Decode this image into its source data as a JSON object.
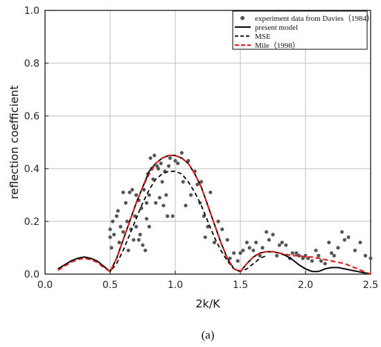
{
  "chart_data": {
    "type": "scatter",
    "xlabel": "2k/K",
    "ylabel": "reflection coefficient",
    "xlim": [
      0,
      2.5
    ],
    "ylim": [
      0,
      1.0
    ],
    "x_ticks": [
      "0.0",
      "0.5",
      "1.0",
      "1.5",
      "2.0",
      "2.5"
    ],
    "y_ticks": [
      "0.0",
      "0.2",
      "0.4",
      "0.6",
      "0.8",
      "1.0"
    ],
    "grid": true,
    "legend_position": "top-right",
    "caption": "(a)",
    "colors": {
      "experiment": "#555555",
      "present_model": "#000000",
      "mse": "#000000",
      "mile": "#e41a1c",
      "grid": "#bdbdbd"
    },
    "series": [
      {
        "name": "experiment data from Davies（1984）",
        "kind": "scatter",
        "points": [
          [
            0.5,
            0.17
          ],
          [
            0.5,
            0.14
          ],
          [
            0.51,
            0.1
          ],
          [
            0.52,
            0.2
          ],
          [
            0.53,
            0.15
          ],
          [
            0.55,
            0.22
          ],
          [
            0.56,
            0.24
          ],
          [
            0.57,
            0.12
          ],
          [
            0.58,
            0.18
          ],
          [
            0.6,
            0.31
          ],
          [
            0.6,
            0.16
          ],
          [
            0.62,
            0.27
          ],
          [
            0.63,
            0.2
          ],
          [
            0.64,
            0.09
          ],
          [
            0.65,
            0.31
          ],
          [
            0.66,
            0.17
          ],
          [
            0.67,
            0.32
          ],
          [
            0.68,
            0.13
          ],
          [
            0.69,
            0.22
          ],
          [
            0.7,
            0.3
          ],
          [
            0.7,
            0.18
          ],
          [
            0.72,
            0.28
          ],
          [
            0.72,
            0.13
          ],
          [
            0.73,
            0.15
          ],
          [
            0.74,
            0.25
          ],
          [
            0.75,
            0.11
          ],
          [
            0.76,
            0.32
          ],
          [
            0.77,
            0.09
          ],
          [
            0.78,
            0.27
          ],
          [
            0.78,
            0.21
          ],
          [
            0.79,
            0.38
          ],
          [
            0.8,
            0.3
          ],
          [
            0.8,
            0.18
          ],
          [
            0.81,
            0.44
          ],
          [
            0.82,
            0.4
          ],
          [
            0.83,
            0.36
          ],
          [
            0.84,
            0.45
          ],
          [
            0.85,
            0.27
          ],
          [
            0.86,
            0.41
          ],
          [
            0.87,
            0.4
          ],
          [
            0.88,
            0.29
          ],
          [
            0.89,
            0.42
          ],
          [
            0.9,
            0.35
          ],
          [
            0.91,
            0.26
          ],
          [
            0.92,
            0.39
          ],
          [
            0.93,
            0.3
          ],
          [
            0.94,
            0.22
          ],
          [
            0.95,
            0.41
          ],
          [
            0.96,
            0.44
          ],
          [
            0.98,
            0.22
          ],
          [
            1.0,
            0.43
          ],
          [
            1.02,
            0.42
          ],
          [
            1.05,
            0.46
          ],
          [
            1.06,
            0.35
          ],
          [
            1.08,
            0.26
          ],
          [
            1.1,
            0.43
          ],
          [
            1.12,
            0.3
          ],
          [
            1.15,
            0.39
          ],
          [
            1.17,
            0.34
          ],
          [
            1.19,
            0.27
          ],
          [
            1.2,
            0.35
          ],
          [
            1.22,
            0.22
          ],
          [
            1.23,
            0.14
          ],
          [
            1.25,
            0.18
          ],
          [
            1.27,
            0.31
          ],
          [
            1.3,
            0.12
          ],
          [
            1.33,
            0.2
          ],
          [
            1.36,
            0.17
          ],
          [
            1.4,
            0.13
          ],
          [
            1.42,
            0.06
          ],
          [
            1.45,
            0.08
          ],
          [
            1.48,
            0.05
          ],
          [
            1.5,
            0.08
          ],
          [
            1.52,
            0.09
          ],
          [
            1.55,
            0.12
          ],
          [
            1.57,
            0.1
          ],
          [
            1.6,
            0.09
          ],
          [
            1.62,
            0.12
          ],
          [
            1.65,
            0.07
          ],
          [
            1.67,
            0.1
          ],
          [
            1.7,
            0.16
          ],
          [
            1.72,
            0.13
          ],
          [
            1.75,
            0.15
          ],
          [
            1.78,
            0.07
          ],
          [
            1.8,
            0.11
          ],
          [
            1.82,
            0.12
          ],
          [
            1.85,
            0.11
          ],
          [
            1.88,
            0.06
          ],
          [
            1.9,
            0.08
          ],
          [
            1.93,
            0.08
          ],
          [
            1.95,
            0.07
          ],
          [
            1.98,
            0.06
          ],
          [
            2.0,
            0.07
          ],
          [
            2.02,
            0.06
          ],
          [
            2.05,
            0.05
          ],
          [
            2.08,
            0.09
          ],
          [
            2.1,
            0.07
          ],
          [
            2.12,
            0.05
          ],
          [
            2.15,
            0.04
          ],
          [
            2.18,
            0.12
          ],
          [
            2.2,
            0.08
          ],
          [
            2.22,
            0.07
          ],
          [
            2.25,
            0.1
          ],
          [
            2.28,
            0.16
          ],
          [
            2.3,
            0.13
          ],
          [
            2.33,
            0.14
          ],
          [
            2.38,
            0.09
          ],
          [
            2.42,
            0.12
          ],
          [
            2.46,
            0.07
          ],
          [
            2.5,
            0.06
          ]
        ]
      },
      {
        "name": "present model",
        "kind": "line",
        "style": "solid",
        "x": [
          0.1,
          0.15,
          0.2,
          0.25,
          0.3,
          0.35,
          0.4,
          0.45,
          0.5,
          0.55,
          0.6,
          0.65,
          0.7,
          0.75,
          0.8,
          0.85,
          0.9,
          0.95,
          1.0,
          1.05,
          1.1,
          1.15,
          1.2,
          1.25,
          1.3,
          1.35,
          1.4,
          1.45,
          1.5,
          1.55,
          1.6,
          1.65,
          1.7,
          1.75,
          1.8,
          1.85,
          1.9,
          1.95,
          2.0,
          2.05,
          2.1,
          2.15,
          2.2,
          2.25,
          2.3,
          2.35,
          2.4,
          2.45,
          2.5
        ],
        "values": [
          0.02,
          0.035,
          0.05,
          0.06,
          0.065,
          0.06,
          0.05,
          0.03,
          0.01,
          0.06,
          0.13,
          0.2,
          0.27,
          0.33,
          0.39,
          0.42,
          0.44,
          0.45,
          0.45,
          0.44,
          0.42,
          0.38,
          0.33,
          0.26,
          0.19,
          0.12,
          0.06,
          0.02,
          0.01,
          0.04,
          0.065,
          0.08,
          0.085,
          0.085,
          0.08,
          0.07,
          0.055,
          0.035,
          0.02,
          0.01,
          0.01,
          0.02,
          0.025,
          0.025,
          0.02,
          0.015,
          0.01,
          0.005,
          0.0
        ]
      },
      {
        "name": "MSE",
        "kind": "line",
        "style": "dashed",
        "x": [
          0.1,
          0.15,
          0.2,
          0.25,
          0.3,
          0.35,
          0.4,
          0.45,
          0.5,
          0.55,
          0.6,
          0.65,
          0.7,
          0.75,
          0.8,
          0.85,
          0.9,
          0.95,
          1.0,
          1.05,
          1.1,
          1.15,
          1.2,
          1.25,
          1.3,
          1.35,
          1.4,
          1.45,
          1.5,
          1.55,
          1.6,
          1.65,
          1.7
        ],
        "values": [
          0.02,
          0.035,
          0.05,
          0.06,
          0.065,
          0.06,
          0.05,
          0.03,
          0.01,
          0.04,
          0.09,
          0.15,
          0.21,
          0.27,
          0.32,
          0.36,
          0.38,
          0.39,
          0.39,
          0.38,
          0.35,
          0.31,
          0.26,
          0.2,
          0.14,
          0.09,
          0.05,
          0.02,
          0.01,
          0.02,
          0.04,
          0.06,
          0.07
        ]
      },
      {
        "name": "Mile（1998）",
        "kind": "line",
        "style": "dashed",
        "x": [
          0.1,
          0.15,
          0.2,
          0.25,
          0.3,
          0.35,
          0.4,
          0.45,
          0.5,
          0.55,
          0.6,
          0.65,
          0.7,
          0.75,
          0.8,
          0.85,
          0.9,
          0.95,
          1.0,
          1.05,
          1.1,
          1.15,
          1.2,
          1.25,
          1.3,
          1.35,
          1.4,
          1.45,
          1.5,
          1.55,
          1.6,
          1.65,
          1.7,
          1.75,
          1.8,
          1.85,
          1.9,
          1.95,
          2.0,
          2.05,
          2.1,
          2.15,
          2.2,
          2.25,
          2.3,
          2.35,
          2.4,
          2.45,
          2.5
        ],
        "values": [
          0.015,
          0.03,
          0.045,
          0.055,
          0.06,
          0.055,
          0.045,
          0.025,
          0.01,
          0.06,
          0.13,
          0.2,
          0.27,
          0.33,
          0.38,
          0.42,
          0.44,
          0.45,
          0.45,
          0.44,
          0.42,
          0.38,
          0.33,
          0.26,
          0.19,
          0.12,
          0.06,
          0.02,
          0.01,
          0.04,
          0.065,
          0.08,
          0.085,
          0.085,
          0.08,
          0.075,
          0.07,
          0.07,
          0.065,
          0.065,
          0.06,
          0.055,
          0.05,
          0.045,
          0.04,
          0.03,
          0.02,
          0.01,
          0.0
        ]
      }
    ]
  }
}
